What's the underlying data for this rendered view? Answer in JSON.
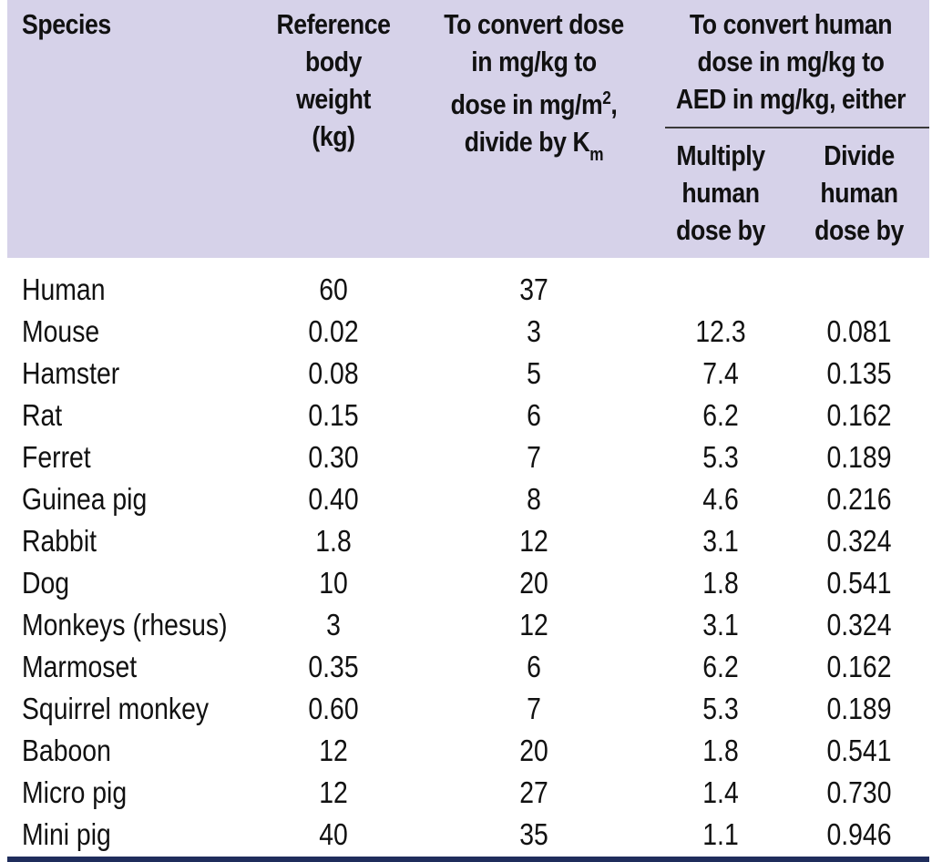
{
  "header": {
    "species": "Species",
    "reference_weight": "Reference\nbody\nweight\n(kg)",
    "to_mgm2_line1": "To convert dose\nin mg/kg to\ndose in mg/m",
    "to_mgm2_sup": "2",
    "to_mgm2_line2": ",",
    "to_mgm2_line3": "divide by K",
    "to_mgm2_sub": "m",
    "aed_group": "To convert human\ndose in mg/kg to\nAED in mg/kg, either",
    "multiply": "Multiply\nhuman\ndose by",
    "divide": "Divide\nhuman\ndose by"
  },
  "rows": [
    {
      "species": "Human",
      "weight": "60",
      "km": "37",
      "multiply": "",
      "divide": ""
    },
    {
      "species": "Mouse",
      "weight": "0.02",
      "km": "3",
      "multiply": "12.3",
      "divide": "0.081"
    },
    {
      "species": "Hamster",
      "weight": "0.08",
      "km": "5",
      "multiply": "7.4",
      "divide": "0.135"
    },
    {
      "species": "Rat",
      "weight": "0.15",
      "km": "6",
      "multiply": "6.2",
      "divide": "0.162"
    },
    {
      "species": "Ferret",
      "weight": "0.30",
      "km": "7",
      "multiply": "5.3",
      "divide": "0.189"
    },
    {
      "species": "Guinea pig",
      "weight": "0.40",
      "km": "8",
      "multiply": "4.6",
      "divide": "0.216"
    },
    {
      "species": "Rabbit",
      "weight": "1.8",
      "km": "12",
      "multiply": "3.1",
      "divide": "0.324"
    },
    {
      "species": "Dog",
      "weight": "10",
      "km": "20",
      "multiply": "1.8",
      "divide": "0.541"
    },
    {
      "species": "Monkeys (rhesus)",
      "weight": "3",
      "km": "12",
      "multiply": "3.1",
      "divide": "0.324"
    },
    {
      "species": "Marmoset",
      "weight": "0.35",
      "km": "6",
      "multiply": "6.2",
      "divide": "0.162"
    },
    {
      "species": "Squirrel monkey",
      "weight": "0.60",
      "km": "7",
      "multiply": "5.3",
      "divide": "0.189"
    },
    {
      "species": "Baboon",
      "weight": "12",
      "km": "20",
      "multiply": "1.8",
      "divide": "0.541"
    },
    {
      "species": "Micro pig",
      "weight": "12",
      "km": "27",
      "multiply": "1.4",
      "divide": "0.730"
    },
    {
      "species": "Mini pig",
      "weight": "40",
      "km": "35",
      "multiply": "1.1",
      "divide": "0.946"
    }
  ],
  "colors": {
    "header_background": "#d6d2e9",
    "bottom_rule": "#1f2d5c",
    "text": "#111111"
  }
}
